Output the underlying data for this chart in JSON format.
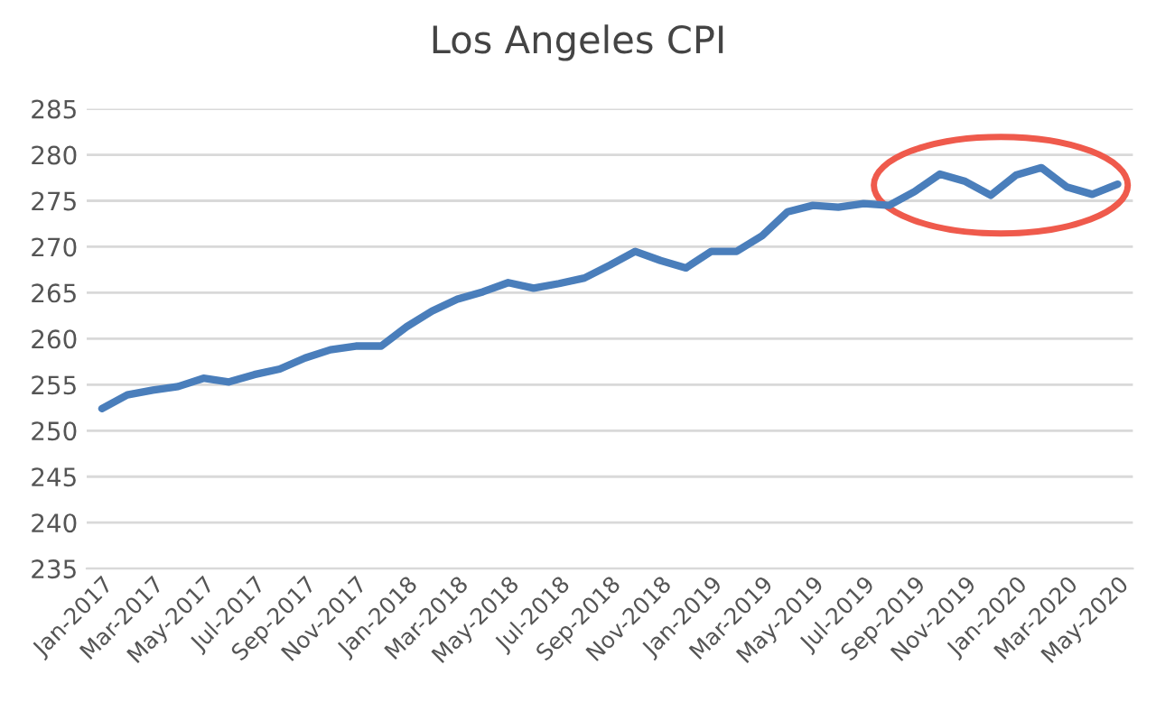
{
  "chart_data": {
    "type": "line",
    "title": "Los Angeles CPI",
    "categories": [
      "Jan-2017",
      null,
      "Mar-2017",
      null,
      "May-2017",
      null,
      "Jul-2017",
      null,
      "Sep-2017",
      null,
      "Nov-2017",
      null,
      "Jan-2018",
      null,
      "Mar-2018",
      null,
      "May-2018",
      null,
      "Jul-2018",
      null,
      "Sep-2018",
      null,
      "Nov-2018",
      null,
      "Jan-2019",
      null,
      "Mar-2019",
      null,
      "May-2019",
      null,
      "Jul-2019",
      null,
      "Sep-2019",
      null,
      "Nov-2019",
      null,
      "Jan-2020",
      null,
      "Mar-2020",
      null,
      "May-2020"
    ],
    "series": [
      {
        "color": "#4a7ebb",
        "values": [
          252.4,
          253.9,
          254.4,
          254.8,
          255.7,
          255.3,
          256.1,
          256.7,
          257.9,
          258.8,
          259.2,
          259.2,
          261.3,
          263.0,
          264.3,
          265.1,
          266.1,
          265.5,
          266.0,
          266.6,
          268.0,
          269.5,
          268.5,
          267.7,
          269.5,
          269.5,
          271.2,
          273.8,
          274.5,
          274.3,
          274.7,
          274.5,
          276.0,
          277.9,
          277.1,
          275.6,
          277.8,
          278.6,
          276.5,
          275.7,
          276.8
        ]
      }
    ],
    "ylim": [
      235,
      285
    ],
    "yticks": [
      235,
      240,
      245,
      250,
      255,
      260,
      265,
      270,
      275,
      280,
      285
    ],
    "grid": "y",
    "legend": false,
    "marker": "none",
    "line_style": "solid"
  }
}
